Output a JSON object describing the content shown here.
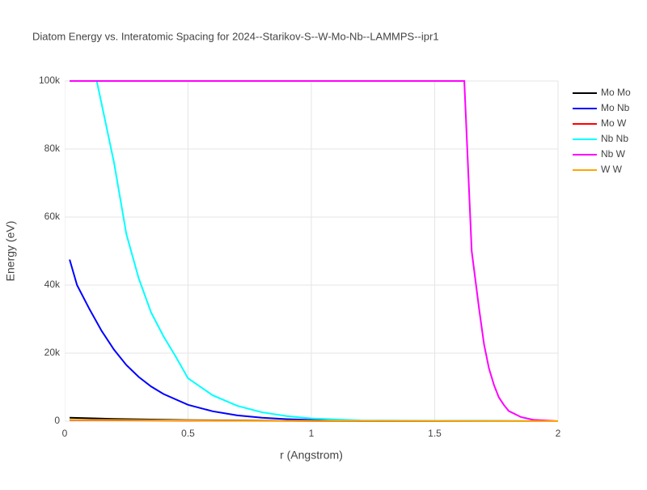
{
  "chart_data": {
    "type": "line",
    "title": "Diatom Energy vs. Interatomic Spacing for 2024--Starikov-S--W-Mo-Nb--LAMMPS--ipr1",
    "x_label": "r (Angstrom)",
    "y_label": "Energy (eV)",
    "xlim": [
      0,
      2
    ],
    "ylim": [
      0,
      100000
    ],
    "xticks": [
      0,
      0.5,
      1,
      1.5,
      2
    ],
    "yticks": [
      0,
      {
        "value": 20000,
        "label": "20k"
      },
      {
        "value": 40000,
        "label": "40k"
      },
      {
        "value": 60000,
        "label": "60k"
      },
      {
        "value": 80000,
        "label": "80k"
      },
      {
        "value": 100000,
        "label": "100k"
      }
    ],
    "grid": true,
    "legend": "right",
    "series": [
      {
        "name": "Mo Mo",
        "color": "#000000",
        "x": [
          0.02,
          0.2,
          0.5,
          1,
          1.5,
          2
        ],
        "values": [
          1000,
          650,
          300,
          100,
          30,
          0
        ]
      },
      {
        "name": "Mo Nb",
        "color": "#0000ff",
        "x": [
          0.02,
          0.05,
          0.1,
          0.15,
          0.2,
          0.25,
          0.3,
          0.35,
          0.4,
          0.5,
          0.6,
          0.7,
          0.8,
          0.9,
          1,
          1.2,
          2
        ],
        "values": [
          47500,
          40000,
          33000,
          26500,
          21000,
          16500,
          13000,
          10200,
          8000,
          4800,
          2900,
          1700,
          1000,
          600,
          350,
          100,
          0
        ]
      },
      {
        "name": "Mo W",
        "color": "#ff0000",
        "x": [
          0.02,
          0.5,
          1,
          2
        ],
        "values": [
          300,
          150,
          50,
          0
        ]
      },
      {
        "name": "Nb Nb",
        "color": "#00ffff",
        "x": [
          0.02,
          0.13,
          0.2,
          0.25,
          0.3,
          0.35,
          0.4,
          0.45,
          0.5,
          0.6,
          0.7,
          0.8,
          0.9,
          1,
          1.2,
          2
        ],
        "values": [
          100000,
          100000,
          76000,
          55000,
          42000,
          32000,
          25000,
          19000,
          12600,
          7600,
          4500,
          2600,
          1500,
          800,
          200,
          0
        ]
      },
      {
        "name": "Nb W",
        "color": "#ff00ff",
        "x": [
          0.02,
          1.62,
          1.65,
          1.68,
          1.7,
          1.72,
          1.74,
          1.76,
          1.78,
          1.8,
          1.85,
          1.9,
          2
        ],
        "values": [
          100000,
          100000,
          50000,
          33000,
          22600,
          15500,
          10700,
          7000,
          4800,
          3000,
          1200,
          400,
          0
        ]
      },
      {
        "name": "W W",
        "color": "#ffa500",
        "x": [
          0.02,
          0.5,
          1,
          2
        ],
        "values": [
          400,
          200,
          80,
          0
        ]
      }
    ]
  }
}
